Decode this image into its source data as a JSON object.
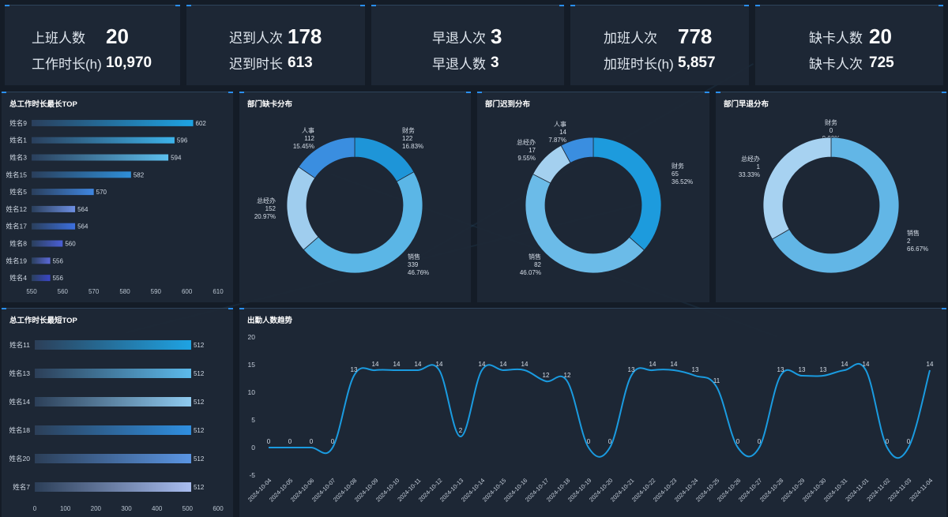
{
  "kpis": [
    {
      "label1": "上班人数",
      "value1": "20",
      "label2": "工作时长(h)",
      "value2": "10,970"
    },
    {
      "label1": "迟到人次",
      "value1": "178",
      "label2": "迟到时长",
      "value2": "613"
    },
    {
      "label1": "早退人次",
      "value1": "3",
      "label2": "早退人数",
      "value2": "3"
    },
    {
      "label1": "加班人次",
      "value1": "778",
      "label2": "加班时长(h)",
      "value2": "5,857"
    },
    {
      "label1": "缺卡人数",
      "value1": "20",
      "label2": "缺卡人次",
      "value2": "725"
    }
  ],
  "panels": {
    "top_longest": "总工作时长最长TOP",
    "dept_missing": "部门缺卡分布",
    "dept_late": "部门迟到分布",
    "dept_early": "部门早退分布",
    "top_shortest": "总工作时长最短TOP",
    "attendance_trend": "出勤人数趋势"
  },
  "colors": {
    "accent": "#1a9be0",
    "bar_dark": "#2b3bb0",
    "donut_light": "#a9d4f2"
  },
  "chart_data": [
    {
      "id": "longest",
      "type": "bar",
      "orientation": "horizontal",
      "categories": [
        "姓名9",
        "姓名1",
        "姓名3",
        "姓名15",
        "姓名5",
        "姓名12",
        "姓名17",
        "姓名8",
        "姓名19",
        "姓名4"
      ],
      "values": [
        602,
        596,
        594,
        582,
        570,
        564,
        564,
        560,
        556,
        556
      ],
      "xlim": [
        550,
        610
      ],
      "xticks": [
        "550",
        "560",
        "570",
        "580",
        "590",
        "600",
        "610"
      ]
    },
    {
      "id": "shortest",
      "type": "bar",
      "orientation": "horizontal",
      "categories": [
        "姓名11",
        "姓名13",
        "姓名14",
        "姓名18",
        "姓名20",
        "姓名7"
      ],
      "values": [
        512,
        512,
        512,
        512,
        512,
        512
      ],
      "xlim": [
        0,
        600
      ],
      "xticks": [
        "0",
        "100",
        "200",
        "300",
        "400",
        "500",
        "600"
      ]
    },
    {
      "id": "missing",
      "type": "pie",
      "slices": [
        {
          "name": "财务",
          "value": "122",
          "pct": "16.83%"
        },
        {
          "name": "销售",
          "value": "339",
          "pct": "46.76%"
        },
        {
          "name": "总经办",
          "value": "152",
          "pct": "20.97%"
        },
        {
          "name": "人事",
          "value": "112",
          "pct": "15.45%"
        }
      ]
    },
    {
      "id": "late",
      "type": "pie",
      "slices": [
        {
          "name": "财务",
          "value": "65",
          "pct": "36.52%"
        },
        {
          "name": "销售",
          "value": "82",
          "pct": "46.07%"
        },
        {
          "name": "总经办",
          "value": "17",
          "pct": "9.55%"
        },
        {
          "name": "人事",
          "value": "14",
          "pct": "7.87%"
        }
      ]
    },
    {
      "id": "early",
      "type": "pie",
      "slices": [
        {
          "name": "财务",
          "value": "0",
          "pct": "0.00%"
        },
        {
          "name": "销售",
          "value": "2",
          "pct": "66.67%"
        },
        {
          "name": "总经办",
          "value": "1",
          "pct": "33.33%"
        }
      ]
    },
    {
      "id": "trend",
      "type": "line",
      "x": [
        "2024-10-04",
        "2024-10-05",
        "2024-10-06",
        "2024-10-07",
        "2024-10-08",
        "2024-10-09",
        "2024-10-10",
        "2024-10-11",
        "2024-10-12",
        "2024-10-13",
        "2024-10-14",
        "2024-10-15",
        "2024-10-16",
        "2024-10-17",
        "2024-10-18",
        "2024-10-19",
        "2024-10-20",
        "2024-10-21",
        "2024-10-22",
        "2024-10-23",
        "2024-10-24",
        "2024-10-25",
        "2024-10-26",
        "2024-10-27",
        "2024-10-28",
        "2024-10-29",
        "2024-10-30",
        "2024-10-31",
        "2024-11-01",
        "2024-11-02",
        "2024-11-03",
        "2024-11-04"
      ],
      "x_tick_labels": [
        "2024-10-04",
        "2024-10-05",
        "2024-10-06",
        "2024-10-07",
        "2024-10-08",
        "2024-10-09",
        "2024-10-10",
        "2024-10-11",
        "2024-10-12",
        "2024-10-13",
        "2024-10-14",
        "2024-10-15",
        "2024-10-16",
        "2024-10-17",
        "2024-10-18",
        "2024-10-19",
        "2024-10-20",
        "2024-10-21",
        "2024-10-22",
        "2024-10-23",
        "2024-10-24",
        "2024-10-25",
        "2024-10-26",
        "2024-10-27",
        "2024-10-28",
        "2024-10-29",
        "2024-10-30",
        "2024-10-31",
        "2024-11-01",
        "2024-11-02",
        "2024-11-03",
        "2024-11-04"
      ],
      "values": [
        0,
        0,
        0,
        0,
        13,
        14,
        14,
        14,
        14,
        2,
        14,
        14,
        14,
        12,
        12,
        0,
        0,
        13,
        14,
        14,
        13,
        11,
        0,
        0,
        13,
        13,
        13,
        14,
        14,
        0,
        0,
        14
      ],
      "ylim": [
        -5,
        20
      ],
      "yticks": [
        "20",
        "15",
        "10",
        "5",
        "0",
        "-5"
      ],
      "grid": false
    }
  ]
}
